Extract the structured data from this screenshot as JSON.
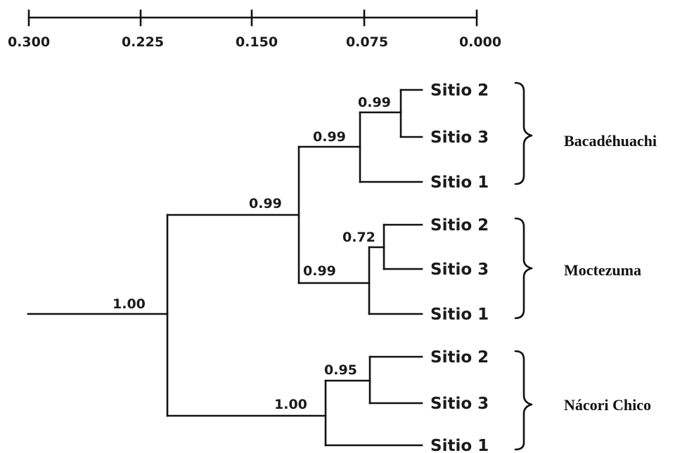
{
  "scale": {
    "ticks": [
      "0.300",
      "0.225",
      "0.150",
      "0.075",
      "0.000"
    ]
  },
  "root_support": "1.00",
  "clades": [
    {
      "group": "Bacadéhuachi",
      "leaves": [
        "Sitio 2",
        "Sitio 3",
        "Sitio 1"
      ],
      "supports": {
        "leaf_pair": "0.99",
        "clade": "0.99"
      }
    },
    {
      "group": "Moctezuma",
      "leaves": [
        "Sitio 2",
        "Sitio 3",
        "Sitio 1"
      ],
      "supports": {
        "leaf_pair": "0.72",
        "clade": "0.99"
      }
    },
    {
      "group": "Nácori Chico",
      "leaves": [
        "Sitio 2",
        "Sitio 3",
        "Sitio 1"
      ],
      "supports": {
        "leaf_pair": "0.95",
        "clade": "1.00"
      }
    }
  ],
  "upper_join_support": "0.99"
}
